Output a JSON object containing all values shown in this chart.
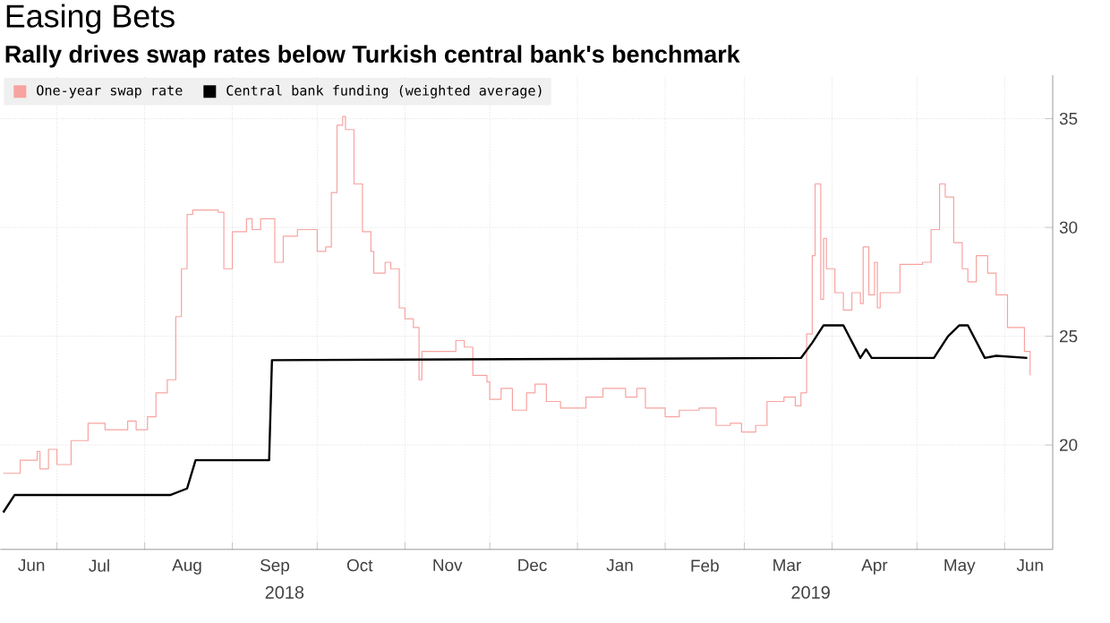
{
  "chart_data": {
    "type": "step",
    "title": "Easing Bets",
    "subtitle": "Rally drives swap rates below Turkish central bank's benchmark",
    "x": [
      "2018-06-12",
      "2018-06-18",
      "2018-06-24",
      "2018-06-25",
      "2018-06-28",
      "2018-07-01",
      "2018-07-06",
      "2018-07-12",
      "2018-07-18",
      "2018-07-26",
      "2018-07-29",
      "2018-08-02",
      "2018-08-05",
      "2018-08-09",
      "2018-08-12",
      "2018-08-14",
      "2018-08-16",
      "2018-08-18",
      "2018-08-27",
      "2018-08-29",
      "2018-09-01",
      "2018-09-06",
      "2018-09-08",
      "2018-09-11",
      "2018-09-16",
      "2018-09-19",
      "2018-09-24",
      "2018-09-28",
      "2018-10-01",
      "2018-10-04",
      "2018-10-06",
      "2018-10-08",
      "2018-10-10",
      "2018-10-11",
      "2018-10-14",
      "2018-10-17",
      "2018-10-20",
      "2018-10-21",
      "2018-10-25",
      "2018-10-27",
      "2018-10-30",
      "2018-11-01",
      "2018-11-04",
      "2018-11-06",
      "2018-11-07",
      "2018-11-13",
      "2018-11-19",
      "2018-11-22",
      "2018-11-25",
      "2018-11-30",
      "2018-12-01",
      "2018-12-05",
      "2018-12-09",
      "2018-12-14",
      "2018-12-17",
      "2018-12-21",
      "2018-12-26",
      "2019-01-04",
      "2019-01-10",
      "2019-01-18",
      "2019-01-22",
      "2019-01-25",
      "2019-02-01",
      "2019-02-06",
      "2019-02-13",
      "2019-02-19",
      "2019-02-24",
      "2019-02-28",
      "2019-03-05",
      "2019-03-09",
      "2019-03-15",
      "2019-03-19",
      "2019-03-21",
      "2019-03-23",
      "2019-03-25",
      "2019-03-26",
      "2019-03-28",
      "2019-03-29",
      "2019-03-30",
      "2019-04-02",
      "2019-04-05",
      "2019-04-08",
      "2019-04-11",
      "2019-04-12",
      "2019-04-14",
      "2019-04-16",
      "2019-04-17",
      "2019-04-18",
      "2019-04-24",
      "2019-04-25",
      "2019-05-03",
      "2019-05-06",
      "2019-05-09",
      "2019-05-11",
      "2019-05-14",
      "2019-05-17",
      "2019-05-19",
      "2019-05-22",
      "2019-05-26",
      "2019-05-29",
      "2019-06-02",
      "2019-06-06",
      "2019-06-08",
      "2019-06-10"
    ],
    "series": [
      {
        "name": "One-year swap rate",
        "type": "step",
        "color": "#f7a3a0",
        "values": [
          18.7,
          19.3,
          19.7,
          18.9,
          19.8,
          19.1,
          20.2,
          21.0,
          20.7,
          21.1,
          20.7,
          21.3,
          22.4,
          23.0,
          25.9,
          28.1,
          30.6,
          30.8,
          30.7,
          28.1,
          29.8,
          30.4,
          29.9,
          30.4,
          28.4,
          29.6,
          29.9,
          29.9,
          28.9,
          29.1,
          31.6,
          34.7,
          35.1,
          34.5,
          32.0,
          29.8,
          28.9,
          27.9,
          28.4,
          28.1,
          26.3,
          25.8,
          25.4,
          23.0,
          24.3,
          24.3,
          24.8,
          24.5,
          23.2,
          22.9,
          22.1,
          22.6,
          21.6,
          22.4,
          22.8,
          22.0,
          21.7,
          22.2,
          22.6,
          22.2,
          22.6,
          21.7,
          21.3,
          21.6,
          21.7,
          20.9,
          21.0,
          20.6,
          20.9,
          22.0,
          22.2,
          21.8,
          22.4,
          25.1,
          28.7,
          32.0,
          26.7,
          29.5,
          28.1,
          27.0,
          26.2,
          27.0,
          26.5,
          29.1,
          26.9,
          28.4,
          26.3,
          27.0,
          27.0,
          28.3,
          28.4,
          29.9,
          32.0,
          31.4,
          29.3,
          28.1,
          27.5,
          28.7,
          27.9,
          26.9,
          25.4,
          25.4,
          24.3,
          23.2
        ]
      },
      {
        "name": "Central bank funding (weighted average)",
        "type": "line",
        "color": "#000000",
        "x": [
          "2018-06-12",
          "2018-06-16",
          "2018-08-10",
          "2018-08-16",
          "2018-08-19",
          "2018-09-14",
          "2018-09-15",
          "2019-03-21",
          "2019-03-25",
          "2019-03-29",
          "2019-04-05",
          "2019-04-11",
          "2019-04-13",
          "2019-04-15",
          "2019-05-07",
          "2019-05-12",
          "2019-05-16",
          "2019-05-19",
          "2019-05-25",
          "2019-05-29",
          "2019-06-09"
        ],
        "values": [
          16.9,
          17.7,
          17.7,
          18.0,
          19.3,
          19.3,
          23.9,
          24.0,
          24.7,
          25.5,
          25.5,
          24.0,
          24.4,
          24.0,
          24.0,
          25.0,
          25.5,
          25.5,
          24.0,
          24.1,
          24.0
        ]
      }
    ],
    "xlim": [
      "2018-06-11",
      "2019-06-18"
    ],
    "xticks": [
      {
        "value": "2018-06-22",
        "label": "Jun"
      },
      {
        "value": "2018-07-01",
        "label": null
      },
      {
        "value": "2018-07-16",
        "label": "Jul"
      },
      {
        "value": "2018-08-01",
        "label": null
      },
      {
        "value": "2018-08-16",
        "label": "Aug"
      },
      {
        "value": "2018-09-01",
        "label": null
      },
      {
        "value": "2018-09-16",
        "label": "Sep"
      },
      {
        "value": "2018-10-01",
        "label": null
      },
      {
        "value": "2018-10-16",
        "label": "Oct"
      },
      {
        "value": "2018-11-01",
        "label": null
      },
      {
        "value": "2018-11-16",
        "label": "Nov"
      },
      {
        "value": "2018-12-01",
        "label": null
      },
      {
        "value": "2018-12-16",
        "label": "Dec"
      },
      {
        "value": "2019-01-01",
        "label": null
      },
      {
        "value": "2019-01-16",
        "label": "Jan"
      },
      {
        "value": "2019-02-01",
        "label": null
      },
      {
        "value": "2019-02-15",
        "label": "Feb"
      },
      {
        "value": "2019-03-01",
        "label": null
      },
      {
        "value": "2019-03-16",
        "label": "Mar"
      },
      {
        "value": "2019-04-01",
        "label": null
      },
      {
        "value": "2019-04-16",
        "label": "Apr"
      },
      {
        "value": "2019-05-01",
        "label": null
      },
      {
        "value": "2019-05-16",
        "label": "May"
      },
      {
        "value": "2019-06-01",
        "label": null
      },
      {
        "value": "2019-06-10",
        "label": "Jun"
      }
    ],
    "ylim": [
      15.2,
      37
    ],
    "yticks": [
      20,
      25,
      30,
      35
    ],
    "annotations": [
      "2018",
      "2019"
    ],
    "grid": true,
    "legend": "top left"
  }
}
